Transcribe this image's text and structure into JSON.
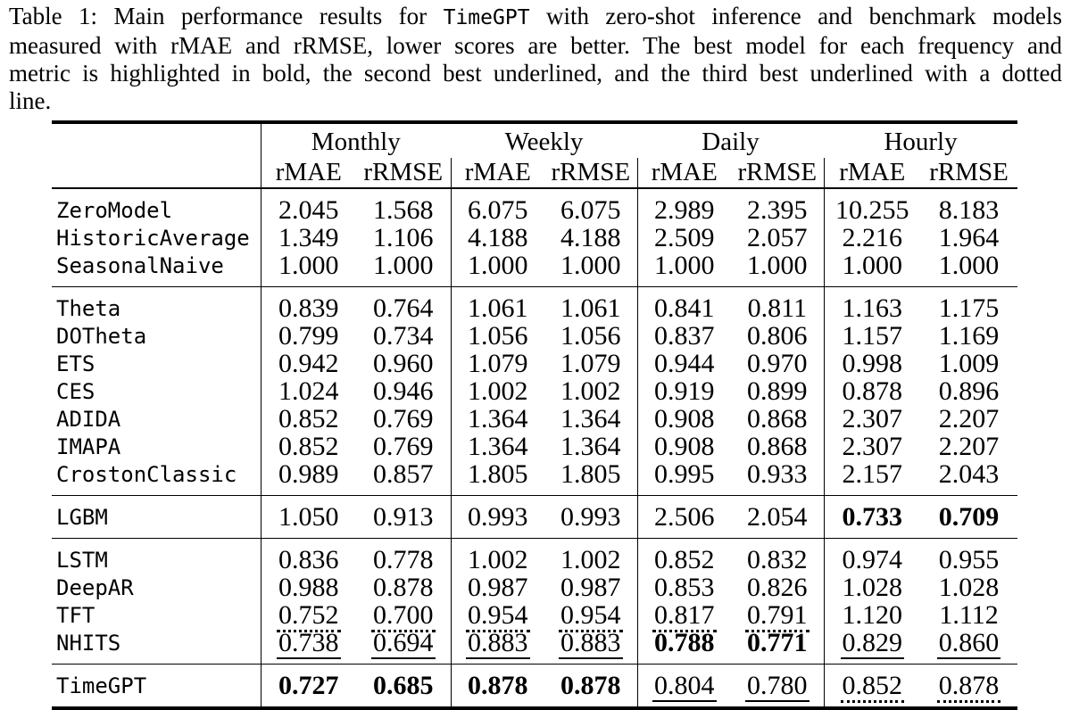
{
  "caption": {
    "lines": [
      {
        "pre": "Table 1: Main performance results for ",
        "code": "TimeGPT",
        "post": " with zero-shot inference and benchmark models"
      },
      {
        "pre": "measured with rMAE and rRMSE, lower scores are better. The best model for each frequency and"
      },
      {
        "pre": "metric is highlighted in bold, the second best underlined, and the third best underlined with a dotted"
      },
      {
        "pre": "line."
      }
    ]
  },
  "table": {
    "frequencies": [
      "Monthly",
      "Weekly",
      "Daily",
      "Hourly"
    ],
    "metrics": [
      "rMAE",
      "rRMSE"
    ],
    "style_legend": {
      "bold": "best",
      "underline": "second best",
      "dotted": "third best"
    },
    "groups": [
      [
        {
          "model": "ZeroModel",
          "values": [
            {
              "v": "2.045"
            },
            {
              "v": "1.568"
            },
            {
              "v": "6.075"
            },
            {
              "v": "6.075"
            },
            {
              "v": "2.989"
            },
            {
              "v": "2.395"
            },
            {
              "v": "10.255"
            },
            {
              "v": "8.183"
            }
          ]
        },
        {
          "model": "HistoricAverage",
          "values": [
            {
              "v": "1.349"
            },
            {
              "v": "1.106"
            },
            {
              "v": "4.188"
            },
            {
              "v": "4.188"
            },
            {
              "v": "2.509"
            },
            {
              "v": "2.057"
            },
            {
              "v": "2.216"
            },
            {
              "v": "1.964"
            }
          ]
        },
        {
          "model": "SeasonalNaive",
          "values": [
            {
              "v": "1.000"
            },
            {
              "v": "1.000"
            },
            {
              "v": "1.000"
            },
            {
              "v": "1.000"
            },
            {
              "v": "1.000"
            },
            {
              "v": "1.000"
            },
            {
              "v": "1.000"
            },
            {
              "v": "1.000"
            }
          ]
        }
      ],
      [
        {
          "model": "Theta",
          "values": [
            {
              "v": "0.839"
            },
            {
              "v": "0.764"
            },
            {
              "v": "1.061"
            },
            {
              "v": "1.061"
            },
            {
              "v": "0.841"
            },
            {
              "v": "0.811"
            },
            {
              "v": "1.163"
            },
            {
              "v": "1.175"
            }
          ]
        },
        {
          "model": "DOTheta",
          "values": [
            {
              "v": "0.799"
            },
            {
              "v": "0.734"
            },
            {
              "v": "1.056"
            },
            {
              "v": "1.056"
            },
            {
              "v": "0.837"
            },
            {
              "v": "0.806"
            },
            {
              "v": "1.157"
            },
            {
              "v": "1.169"
            }
          ]
        },
        {
          "model": "ETS",
          "values": [
            {
              "v": "0.942"
            },
            {
              "v": "0.960"
            },
            {
              "v": "1.079"
            },
            {
              "v": "1.079"
            },
            {
              "v": "0.944"
            },
            {
              "v": "0.970"
            },
            {
              "v": "0.998"
            },
            {
              "v": "1.009"
            }
          ]
        },
        {
          "model": "CES",
          "values": [
            {
              "v": "1.024"
            },
            {
              "v": "0.946"
            },
            {
              "v": "1.002"
            },
            {
              "v": "1.002"
            },
            {
              "v": "0.919"
            },
            {
              "v": "0.899"
            },
            {
              "v": "0.878"
            },
            {
              "v": "0.896"
            }
          ]
        },
        {
          "model": "ADIDA",
          "values": [
            {
              "v": "0.852"
            },
            {
              "v": "0.769"
            },
            {
              "v": "1.364"
            },
            {
              "v": "1.364"
            },
            {
              "v": "0.908"
            },
            {
              "v": "0.868"
            },
            {
              "v": "2.307"
            },
            {
              "v": "2.207"
            }
          ]
        },
        {
          "model": "IMAPA",
          "values": [
            {
              "v": "0.852"
            },
            {
              "v": "0.769"
            },
            {
              "v": "1.364"
            },
            {
              "v": "1.364"
            },
            {
              "v": "0.908"
            },
            {
              "v": "0.868"
            },
            {
              "v": "2.307"
            },
            {
              "v": "2.207"
            }
          ]
        },
        {
          "model": "CrostonClassic",
          "values": [
            {
              "v": "0.989"
            },
            {
              "v": "0.857"
            },
            {
              "v": "1.805"
            },
            {
              "v": "1.805"
            },
            {
              "v": "0.995"
            },
            {
              "v": "0.933"
            },
            {
              "v": "2.157"
            },
            {
              "v": "2.043"
            }
          ]
        }
      ],
      [
        {
          "model": "LGBM",
          "values": [
            {
              "v": "1.050"
            },
            {
              "v": "0.913"
            },
            {
              "v": "0.993"
            },
            {
              "v": "0.993"
            },
            {
              "v": "2.506"
            },
            {
              "v": "2.054"
            },
            {
              "v": "0.733",
              "s": "bold"
            },
            {
              "v": "0.709",
              "s": "bold"
            }
          ]
        }
      ],
      [
        {
          "model": "LSTM",
          "values": [
            {
              "v": "0.836"
            },
            {
              "v": "0.778"
            },
            {
              "v": "1.002"
            },
            {
              "v": "1.002"
            },
            {
              "v": "0.852"
            },
            {
              "v": "0.832"
            },
            {
              "v": "0.974"
            },
            {
              "v": "0.955"
            }
          ]
        },
        {
          "model": "DeepAR",
          "values": [
            {
              "v": "0.988"
            },
            {
              "v": "0.878"
            },
            {
              "v": "0.987"
            },
            {
              "v": "0.987"
            },
            {
              "v": "0.853"
            },
            {
              "v": "0.826"
            },
            {
              "v": "1.028"
            },
            {
              "v": "1.028"
            }
          ]
        },
        {
          "model": "TFT",
          "values": [
            {
              "v": "0.752",
              "s": "dotted"
            },
            {
              "v": "0.700",
              "s": "dotted"
            },
            {
              "v": "0.954",
              "s": "dotted"
            },
            {
              "v": "0.954",
              "s": "dotted"
            },
            {
              "v": "0.817",
              "s": "dotted"
            },
            {
              "v": "0.791",
              "s": "dotted"
            },
            {
              "v": "1.120"
            },
            {
              "v": "1.112"
            }
          ]
        },
        {
          "model": "NHITS",
          "values": [
            {
              "v": "0.738",
              "s": "underline"
            },
            {
              "v": "0.694",
              "s": "underline"
            },
            {
              "v": "0.883",
              "s": "underline"
            },
            {
              "v": "0.883",
              "s": "underline"
            },
            {
              "v": "0.788",
              "s": "bold"
            },
            {
              "v": "0.771",
              "s": "bold"
            },
            {
              "v": "0.829",
              "s": "underline"
            },
            {
              "v": "0.860",
              "s": "underline"
            }
          ]
        }
      ],
      [
        {
          "model": "TimeGPT",
          "values": [
            {
              "v": "0.727",
              "s": "bold"
            },
            {
              "v": "0.685",
              "s": "bold"
            },
            {
              "v": "0.878",
              "s": "bold"
            },
            {
              "v": "0.878",
              "s": "bold"
            },
            {
              "v": "0.804",
              "s": "underline"
            },
            {
              "v": "0.780",
              "s": "underline"
            },
            {
              "v": "0.852",
              "s": "dotted"
            },
            {
              "v": "0.878",
              "s": "dotted"
            }
          ]
        }
      ]
    ]
  }
}
